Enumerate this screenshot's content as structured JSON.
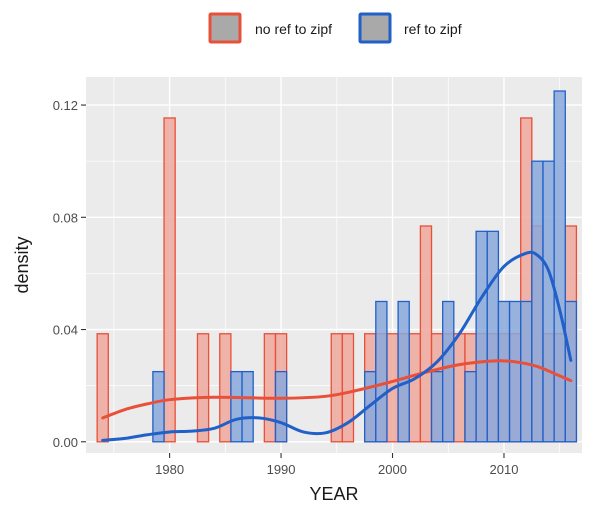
{
  "chart_data": {
    "type": "bar",
    "xlabel": "YEAR",
    "ylabel": "density",
    "xlim": [
      1972.5,
      2017
    ],
    "ylim": [
      -0.004,
      0.13
    ],
    "x_ticks": [
      1980,
      1990,
      2000,
      2010
    ],
    "y_ticks": [
      0.0,
      0.04,
      0.08,
      0.12
    ],
    "y_tick_labels": [
      "0.00",
      "0.04",
      "0.08",
      "0.12"
    ],
    "bin_width": 1,
    "legend_position": "top",
    "grid": true,
    "series": [
      {
        "name": "no ref to zipf",
        "color": "#e8503a",
        "fill": "#f0a89c",
        "bars": [
          [
            1974,
            0.0385
          ],
          [
            1980,
            0.1154
          ],
          [
            1983,
            0.0385
          ],
          [
            1985,
            0.0385
          ],
          [
            1989,
            0.0385
          ],
          [
            1990,
            0.0385
          ],
          [
            1995,
            0.0385
          ],
          [
            1996,
            0.0385
          ],
          [
            1998,
            0.0385
          ],
          [
            1999,
            0.0385
          ],
          [
            2000,
            0.0385
          ],
          [
            2001,
            0.0385
          ],
          [
            2002,
            0.0385
          ],
          [
            2003,
            0.0769
          ],
          [
            2004,
            0.0385
          ],
          [
            2005,
            0.0385
          ],
          [
            2006,
            0.0385
          ],
          [
            2007,
            0.0385
          ],
          [
            2008,
            0.0385
          ],
          [
            2009,
            0.0385
          ],
          [
            2010,
            0.0385
          ],
          [
            2011,
            0.0385
          ],
          [
            2012,
            0.1154
          ],
          [
            2013,
            0.0769
          ],
          [
            2014,
            0.0385
          ],
          [
            2015,
            0.0385
          ],
          [
            2016,
            0.0769
          ]
        ],
        "density": [
          [
            1974,
            0.0085
          ],
          [
            1976,
            0.0115
          ],
          [
            1978,
            0.0135
          ],
          [
            1980,
            0.015
          ],
          [
            1983,
            0.0158
          ],
          [
            1986,
            0.0158
          ],
          [
            1990,
            0.0155
          ],
          [
            1994,
            0.0162
          ],
          [
            1997,
            0.0185
          ],
          [
            2000,
            0.0215
          ],
          [
            2003,
            0.0248
          ],
          [
            2006,
            0.0275
          ],
          [
            2009,
            0.0288
          ],
          [
            2011,
            0.0285
          ],
          [
            2013,
            0.0268
          ],
          [
            2015,
            0.0235
          ],
          [
            2016,
            0.0218
          ]
        ]
      },
      {
        "name": "ref to zipf",
        "color": "#2060c8",
        "fill": "#8aa8dc",
        "bars": [
          [
            1979,
            0.025
          ],
          [
            1986,
            0.025
          ],
          [
            1987,
            0.025
          ],
          [
            1990,
            0.025
          ],
          [
            1998,
            0.025
          ],
          [
            1999,
            0.05
          ],
          [
            2001,
            0.05
          ],
          [
            2004,
            0.025
          ],
          [
            2005,
            0.05
          ],
          [
            2007,
            0.025
          ],
          [
            2008,
            0.075
          ],
          [
            2009,
            0.075
          ],
          [
            2010,
            0.05
          ],
          [
            2011,
            0.05
          ],
          [
            2012,
            0.05
          ],
          [
            2013,
            0.1
          ],
          [
            2014,
            0.1
          ],
          [
            2015,
            0.125
          ],
          [
            2016,
            0.05
          ]
        ],
        "density": [
          [
            1974,
            0.0005
          ],
          [
            1976,
            0.0012
          ],
          [
            1978,
            0.0025
          ],
          [
            1980,
            0.0035
          ],
          [
            1982,
            0.0038
          ],
          [
            1984,
            0.0048
          ],
          [
            1986,
            0.008
          ],
          [
            1988,
            0.0085
          ],
          [
            1990,
            0.0068
          ],
          [
            1992,
            0.0035
          ],
          [
            1994,
            0.0032
          ],
          [
            1996,
            0.0068
          ],
          [
            1998,
            0.013
          ],
          [
            2000,
            0.019
          ],
          [
            2002,
            0.0225
          ],
          [
            2004,
            0.0285
          ],
          [
            2006,
            0.0385
          ],
          [
            2008,
            0.0515
          ],
          [
            2010,
            0.0625
          ],
          [
            2012,
            0.0672
          ],
          [
            2013,
            0.0665
          ],
          [
            2014,
            0.061
          ],
          [
            2015,
            0.047
          ],
          [
            2016,
            0.029
          ]
        ]
      }
    ]
  }
}
